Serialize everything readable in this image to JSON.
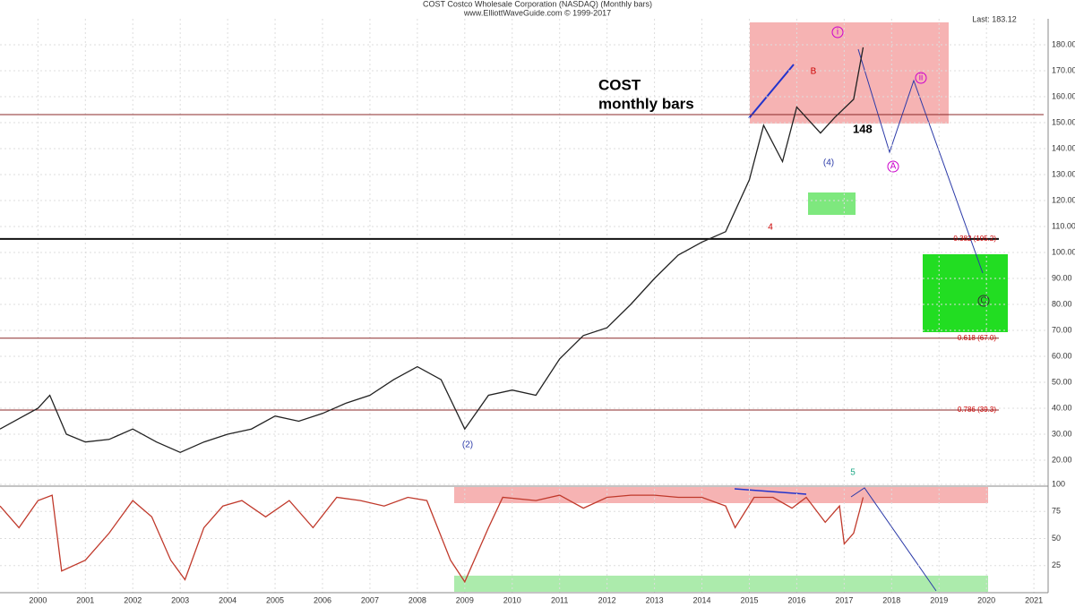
{
  "header": {
    "line1": "COST Costco Wholesale Corporation (NASDAQ) (Monthly bars)",
    "line2": "www.ElliottWaveGuide.com © 1999-2017",
    "quote": "Last: 183.12"
  },
  "annotations": {
    "symbol": "COST",
    "subtitle": "monthly bars",
    "target": "148",
    "wave_i": "i",
    "wave_ii": "ii",
    "wave_a": "A",
    "wave_b": "B",
    "wave_c": "C",
    "wave_4": "4",
    "wave_5": "5",
    "wave_iv": "(4)",
    "wave_low": "(2)"
  },
  "chart_data": [
    {
      "type": "line",
      "x": [
        1999.2,
        1999.6,
        2000.0,
        2000.25,
        2000.6,
        2001.0,
        2001.5,
        2002.0,
        2002.5,
        2003.0,
        2003.5,
        2004.0,
        2004.5,
        2005.0,
        2005.5,
        2006.0,
        2006.5,
        2007.0,
        2007.5,
        2008.0,
        2008.5,
        2009.0,
        2009.5,
        2010.0,
        2010.5,
        2011.0,
        2011.5,
        2012.0,
        2012.5,
        2013.0,
        2013.5,
        2014.0,
        2014.5,
        2015.0,
        2015.3,
        2015.7,
        2016.0,
        2016.5,
        2016.8,
        2017.2,
        2017.4
      ],
      "series": [
        {
          "name": "COST",
          "color": "#222222",
          "values": [
            32,
            36,
            40,
            45,
            30,
            27,
            28,
            32,
            27,
            23,
            27,
            30,
            32,
            37,
            35,
            38,
            42,
            45,
            51,
            56,
            51,
            32,
            45,
            47,
            45,
            59,
            68,
            71,
            80,
            90,
            99,
            104,
            108,
            128,
            149,
            135,
            156,
            146,
            152,
            159,
            179
          ]
        }
      ],
      "xlim": [
        1999.2,
        2021.3
      ],
      "xticks": [
        2000,
        2001,
        2002,
        2003,
        2004,
        2005,
        2006,
        2007,
        2008,
        2009,
        2010,
        2011,
        2012,
        2013,
        2014,
        2015,
        2016,
        2017,
        2018,
        2019,
        2020,
        2021
      ],
      "ylim": [
        10,
        190
      ],
      "yticks": [
        {
          "value": 20,
          "label": "20.00"
        },
        {
          "value": 30,
          "label": "30.00"
        },
        {
          "value": 40,
          "label": "40.00"
        },
        {
          "value": 50,
          "label": "50.00"
        },
        {
          "value": 60,
          "label": "60.00"
        },
        {
          "value": 70,
          "label": "70.00"
        },
        {
          "value": 80,
          "label": "80.00"
        },
        {
          "value": 90,
          "label": "90.00"
        },
        {
          "value": 100,
          "label": "100.00"
        },
        {
          "value": 110,
          "label": "110.00"
        },
        {
          "value": 120,
          "label": "120.00"
        },
        {
          "value": 130,
          "label": "130.00"
        },
        {
          "value": 140,
          "label": "140.00"
        },
        {
          "value": 150,
          "label": "150.00"
        },
        {
          "value": 160,
          "label": "160.00"
        },
        {
          "value": 170,
          "label": "170.00"
        },
        {
          "value": 180,
          "label": "180.00"
        }
      ],
      "levels": [
        {
          "value": 153.1,
          "color": "#8b2a2a",
          "label": null
        },
        {
          "value": 105.2,
          "color": "#111111",
          "label": "0.382 (105.2)"
        },
        {
          "value": 67.0,
          "color": "#8b2a2a",
          "label": "0.618 (67.0)"
        },
        {
          "value": 39.3,
          "color": "#8b2a2a",
          "label": "0.786 (39.3)"
        }
      ],
      "grid": true
    },
    {
      "type": "line",
      "x": [
        1999.2,
        1999.6,
        2000.0,
        2000.3,
        2000.5,
        2001.0,
        2001.5,
        2002.0,
        2002.4,
        2002.8,
        2003.1,
        2003.5,
        2003.9,
        2004.3,
        2004.8,
        2005.3,
        2005.8,
        2006.3,
        2006.8,
        2007.3,
        2007.8,
        2008.2,
        2008.7,
        2009.0,
        2009.5,
        2009.8,
        2010.5,
        2011.0,
        2011.5,
        2012.0,
        2012.5,
        2013.0,
        2013.5,
        2014.0,
        2014.5,
        2014.7,
        2015.1,
        2015.5,
        2015.9,
        2016.2,
        2016.6,
        2016.9,
        2017.0,
        2017.2,
        2017.4
      ],
      "series": [
        {
          "name": "Stochastic",
          "color": "#c0392b",
          "values": [
            80,
            60,
            85,
            90,
            20,
            30,
            55,
            85,
            70,
            30,
            12,
            60,
            80,
            85,
            70,
            85,
            60,
            88,
            85,
            80,
            88,
            85,
            30,
            10,
            60,
            88,
            85,
            90,
            78,
            88,
            90,
            90,
            88,
            88,
            80,
            60,
            88,
            88,
            78,
            88,
            65,
            80,
            45,
            55,
            88
          ]
        }
      ],
      "xlim": [
        1999.2,
        2021.3
      ],
      "ylim": [
        0,
        100
      ],
      "yticks": [
        25,
        50,
        75,
        100
      ],
      "grid": true
    }
  ]
}
